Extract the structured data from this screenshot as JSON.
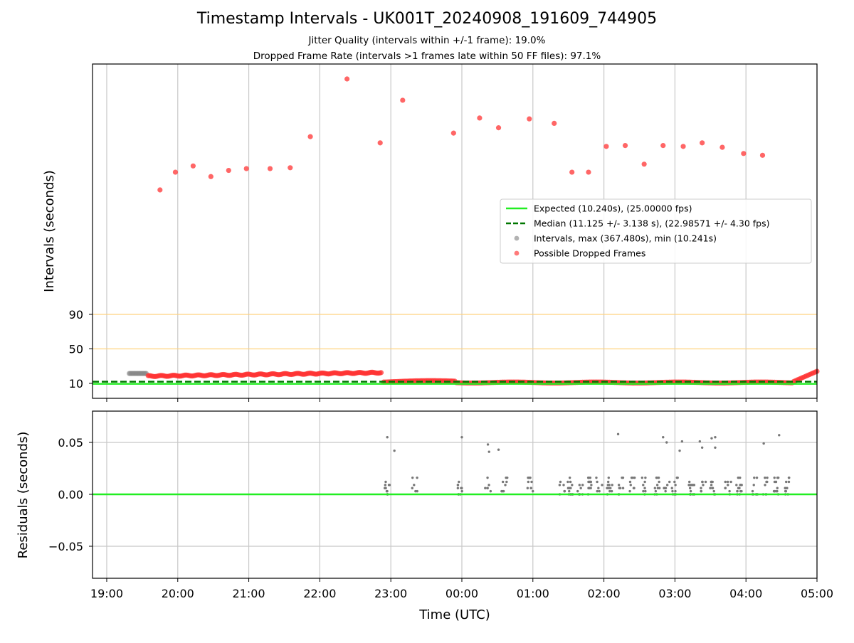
{
  "chart_data": {
    "type": "scatter",
    "title": "Timestamp Intervals - UK001T_20240908_191609_744905",
    "subtitle_lines": [
      "Jitter Quality (intervals within +/-1 frame): 19.0%",
      "Dropped Frame Rate (intervals >1 frames late within 50 FF files): 97.1%"
    ],
    "xlabel": "Time (UTC)",
    "x_range": [
      "18:48",
      "05:00"
    ],
    "x_ticks": [
      "19:00",
      "20:00",
      "21:00",
      "22:00",
      "23:00",
      "00:00",
      "01:00",
      "02:00",
      "03:00",
      "04:00",
      "05:00"
    ],
    "grid": true,
    "panels": [
      {
        "name": "intervals",
        "ylabel": "Intervals (seconds)",
        "y_ticks": [
          "10",
          "50",
          "90"
        ],
        "reference_lines": [
          {
            "y": 50,
            "color": "#ffd27f"
          },
          {
            "y": 90,
            "color": "#ffd27f"
          }
        ],
        "legend_position": "center-right",
        "series": [
          {
            "name": "Expected (10.240s), (25.00000 fps)",
            "kind": "hline",
            "y": 10.24,
            "color": "#22ee22",
            "style": "solid"
          },
          {
            "name": "Median (11.125 +/- 3.138 s), (22.98571 +/- 4.30 fps)",
            "kind": "hline",
            "y": 11.125,
            "color": "#007700",
            "style": "dashed"
          },
          {
            "name": "Intervals, max (367.480s), min (10.241s)",
            "kind": "scatter",
            "color": "#888888"
          },
          {
            "name": "Possible Dropped Frames",
            "kind": "scatter",
            "color": "#ff3333"
          }
        ],
        "dropped_outliers": [
          {
            "t": "19:45",
            "y": 230
          },
          {
            "t": "19:58",
            "y": 250
          },
          {
            "t": "20:13",
            "y": 257
          },
          {
            "t": "20:28",
            "y": 245
          },
          {
            "t": "20:43",
            "y": 252
          },
          {
            "t": "20:58",
            "y": 254
          },
          {
            "t": "21:18",
            "y": 254
          },
          {
            "t": "21:35",
            "y": 255
          },
          {
            "t": "21:52",
            "y": 290
          },
          {
            "t": "22:23",
            "y": 355
          },
          {
            "t": "22:51",
            "y": 283
          },
          {
            "t": "23:10",
            "y": 331
          },
          {
            "t": "23:53",
            "y": 294
          },
          {
            "t": "00:15",
            "y": 311
          },
          {
            "t": "00:31",
            "y": 300
          },
          {
            "t": "00:57",
            "y": 310
          },
          {
            "t": "01:18",
            "y": 305
          },
          {
            "t": "01:33",
            "y": 250
          },
          {
            "t": "01:47",
            "y": 250
          },
          {
            "t": "02:02",
            "y": 279
          },
          {
            "t": "02:18",
            "y": 280
          },
          {
            "t": "02:34",
            "y": 259
          },
          {
            "t": "02:50",
            "y": 280
          },
          {
            "t": "03:07",
            "y": 279
          },
          {
            "t": "03:23",
            "y": 283
          },
          {
            "t": "03:40",
            "y": 278
          },
          {
            "t": "03:58",
            "y": 271
          },
          {
            "t": "04:14",
            "y": 269
          }
        ]
      },
      {
        "name": "residuals",
        "ylabel": "Residuals (seconds)",
        "y_ticks": [
          "0.05",
          "0.00",
          "−0.05"
        ],
        "ylim": [
          -0.08,
          0.08
        ],
        "reference_line": {
          "y": 0,
          "color": "#22ee22"
        },
        "series": [
          {
            "name": "Residuals",
            "kind": "scatter",
            "color": "#777777"
          }
        ]
      }
    ]
  }
}
